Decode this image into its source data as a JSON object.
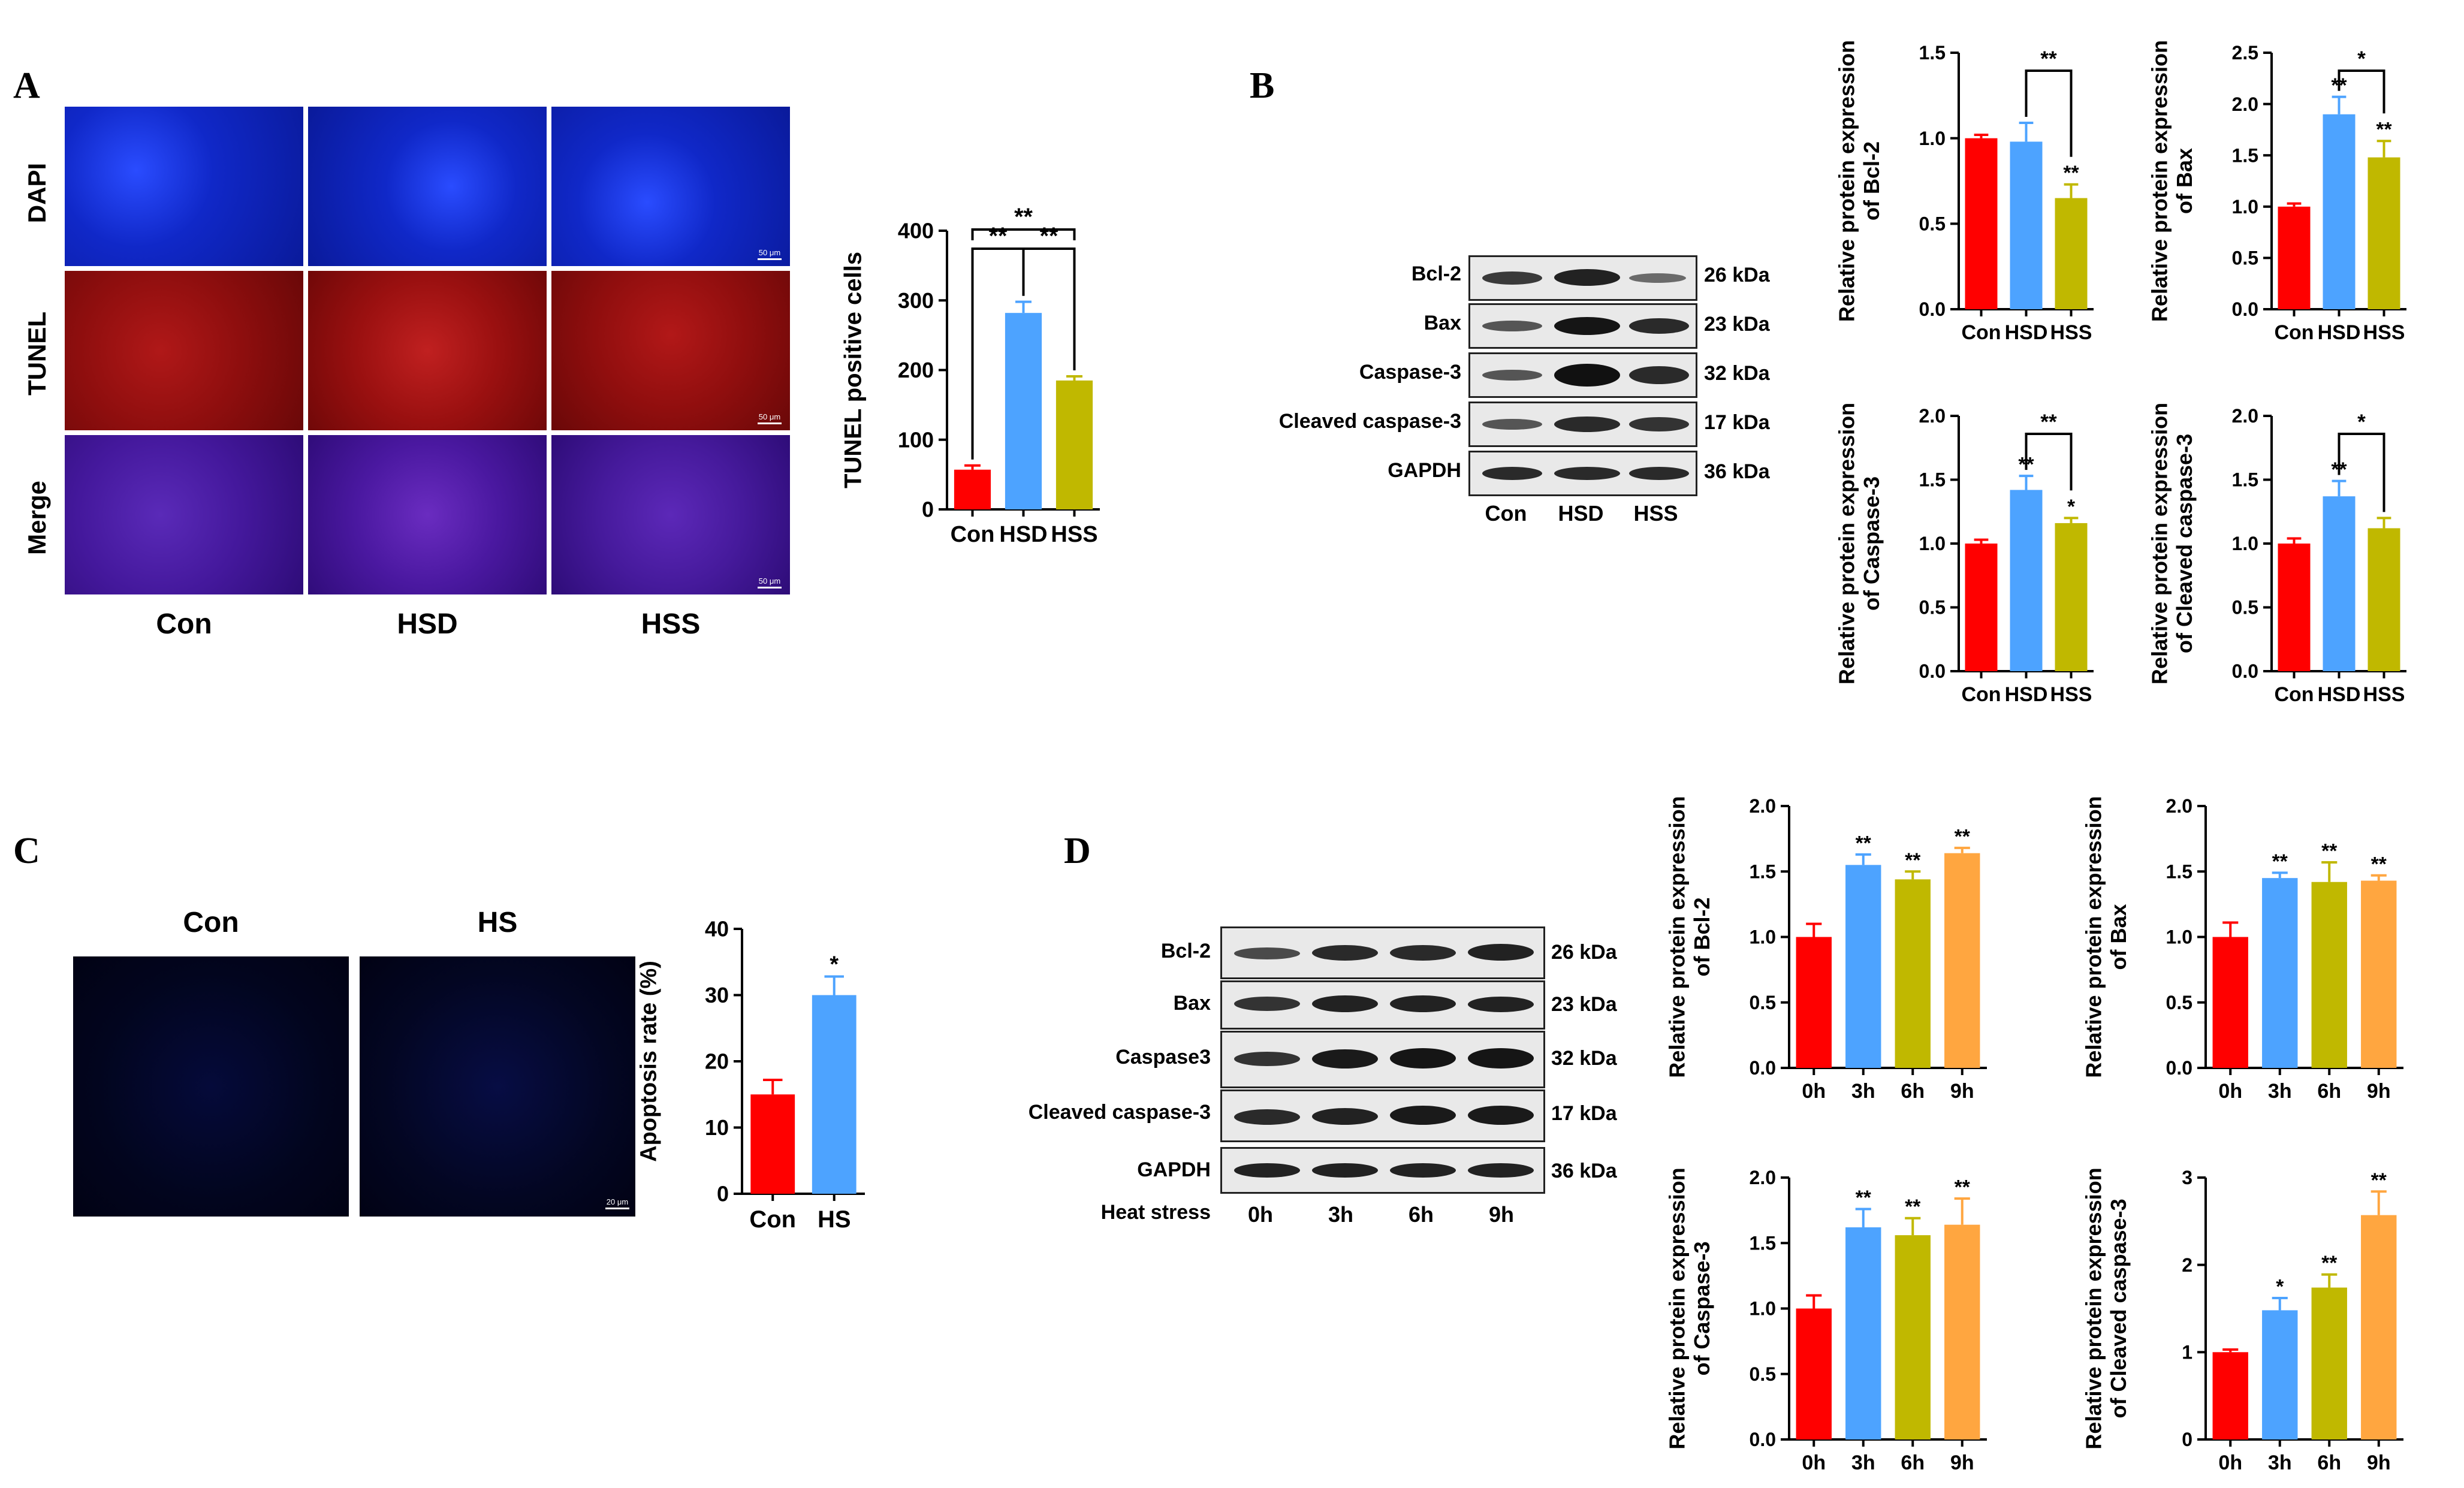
{
  "colors": {
    "red": "#ff0000",
    "blue": "#4da3ff",
    "olive": "#c0b800",
    "orange": "#ffa640",
    "dapi": "#1122cc",
    "tunel": "#a31010",
    "merge": "#4c1ea0"
  },
  "panel_A": {
    "letter": "A",
    "row_labels": [
      "DAPI",
      "TUNEL",
      "Merge"
    ],
    "col_labels": [
      "Con",
      "HSD",
      "HSS"
    ],
    "scale_text": "50 μm"
  },
  "panel_B": {
    "letter": "B",
    "blot_rows": [
      {
        "protein": "Bcl-2",
        "kda": "26 kDa"
      },
      {
        "protein": "Bax",
        "kda": "23 kDa"
      },
      {
        "protein": "Caspase-3",
        "kda": "32 kDa"
      },
      {
        "protein": "Cleaved caspase-3",
        "kda": "17 kDa"
      },
      {
        "protein": "GAPDH",
        "kda": "36 kDa"
      }
    ],
    "lanes": [
      "Con",
      "HSD",
      "HSS"
    ]
  },
  "panel_C": {
    "letter": "C",
    "col_labels": [
      "Con",
      "HS"
    ],
    "scale_text": "20 μm"
  },
  "panel_D": {
    "letter": "D",
    "blot_rows": [
      {
        "protein": "Bcl-2",
        "kda": "26 kDa"
      },
      {
        "protein": "Bax",
        "kda": "23 kDa"
      },
      {
        "protein": "Caspase3",
        "kda": "32 kDa"
      },
      {
        "protein": "Cleaved  caspase-3",
        "kda": "17 kDa"
      },
      {
        "protein": "GAPDH",
        "kda": "36 kDa"
      }
    ],
    "heat_label": "Heat stress",
    "lanes": [
      "0h",
      "3h",
      "6h",
      "9h"
    ]
  },
  "chart_data": [
    {
      "id": "A_tunel",
      "type": "bar",
      "categories": [
        "Con",
        "HSD",
        "HSS"
      ],
      "values": [
        57,
        282,
        185
      ],
      "errors": [
        6,
        16,
        6
      ],
      "ylabel": "TUNEL positive cells",
      "ylim": [
        0,
        400
      ],
      "yticks": [
        0,
        100,
        200,
        300,
        400
      ],
      "tick_labels": [
        "0",
        "100",
        "200",
        "300",
        "400"
      ],
      "colors": [
        "red",
        "blue",
        "olive"
      ],
      "bar_stars": [
        "",
        "",
        ""
      ],
      "brackets": [
        {
          "from": 0,
          "to": 2,
          "text": "**",
          "level": 2
        },
        {
          "from": 0,
          "to": 1,
          "text": "**",
          "level": 1
        },
        {
          "from": 1,
          "to": 2,
          "text": "**",
          "level": 1
        }
      ]
    },
    {
      "id": "B_bcl2",
      "type": "bar",
      "categories": [
        "Con",
        "HSD",
        "HSS"
      ],
      "values": [
        1.0,
        0.98,
        0.65
      ],
      "errors": [
        0.02,
        0.11,
        0.08
      ],
      "ylabel": "Relative protein expression of Bcl-2",
      "ylim": [
        0,
        1.5
      ],
      "yticks": [
        0,
        0.5,
        1.0,
        1.5
      ],
      "tick_labels": [
        "0.0",
        "0.5",
        "1.0",
        "1.5"
      ],
      "colors": [
        "red",
        "blue",
        "olive"
      ],
      "bar_stars": [
        "",
        "",
        "**"
      ],
      "brackets": [
        {
          "from": 1,
          "to": 2,
          "text": "**",
          "level": 1
        }
      ]
    },
    {
      "id": "B_bax",
      "type": "bar",
      "categories": [
        "Con",
        "HSD",
        "HSS"
      ],
      "values": [
        1.0,
        1.9,
        1.48
      ],
      "errors": [
        0.03,
        0.17,
        0.16
      ],
      "ylabel": "Relative protein expression of Bax",
      "ylim": [
        0,
        2.5
      ],
      "yticks": [
        0,
        0.5,
        1.0,
        1.5,
        2.0,
        2.5
      ],
      "tick_labels": [
        "0.0",
        "0.5",
        "1.0",
        "1.5",
        "2.0",
        "2.5"
      ],
      "colors": [
        "red",
        "blue",
        "olive"
      ],
      "bar_stars": [
        "",
        "**",
        "**"
      ],
      "brackets": [
        {
          "from": 1,
          "to": 2,
          "text": "*",
          "level": 1
        }
      ]
    },
    {
      "id": "B_casp3",
      "type": "bar",
      "categories": [
        "Con",
        "HSD",
        "HSS"
      ],
      "values": [
        1.0,
        1.42,
        1.16
      ],
      "errors": [
        0.03,
        0.11,
        0.04
      ],
      "ylabel": "Relative protein expression of Caspase-3",
      "ylim": [
        0,
        2.0
      ],
      "yticks": [
        0,
        0.5,
        1.0,
        1.5,
        2.0
      ],
      "tick_labels": [
        "0.0",
        "0.5",
        "1.0",
        "1.5",
        "2.0"
      ],
      "colors": [
        "red",
        "blue",
        "olive"
      ],
      "bar_stars": [
        "",
        "**",
        "*"
      ],
      "brackets": [
        {
          "from": 1,
          "to": 2,
          "text": "**",
          "level": 1
        }
      ]
    },
    {
      "id": "B_cleaved",
      "type": "bar",
      "categories": [
        "Con",
        "HSD",
        "HSS"
      ],
      "values": [
        1.0,
        1.37,
        1.12
      ],
      "errors": [
        0.04,
        0.12,
        0.08
      ],
      "ylabel": "Relative protein expression of Cleaved caspase-3",
      "ylim": [
        0,
        2.0
      ],
      "yticks": [
        0,
        0.5,
        1.0,
        1.5,
        2.0
      ],
      "tick_labels": [
        "0.0",
        "0.5",
        "1.0",
        "1.5",
        "2.0"
      ],
      "colors": [
        "red",
        "blue",
        "olive"
      ],
      "bar_stars": [
        "",
        "**",
        ""
      ],
      "brackets": [
        {
          "from": 1,
          "to": 2,
          "text": "*",
          "level": 1
        }
      ]
    },
    {
      "id": "C_apop",
      "type": "bar",
      "categories": [
        "Con",
        "HS"
      ],
      "values": [
        15,
        30
      ],
      "errors": [
        2.2,
        2.8
      ],
      "ylabel": "Apoptosis rate (%)",
      "ylim": [
        0,
        40
      ],
      "yticks": [
        0,
        10,
        20,
        30,
        40
      ],
      "tick_labels": [
        "0",
        "10",
        "20",
        "30",
        "40"
      ],
      "colors": [
        "red",
        "blue"
      ],
      "bar_stars": [
        "",
        "*"
      ],
      "brackets": []
    },
    {
      "id": "D_bcl2",
      "type": "bar",
      "categories": [
        "0h",
        "3h",
        "6h",
        "9h"
      ],
      "values": [
        1.0,
        1.55,
        1.44,
        1.64
      ],
      "errors": [
        0.1,
        0.08,
        0.06,
        0.04
      ],
      "ylabel": "Relative protein expression of Bcl-2",
      "ylim": [
        0,
        2.0
      ],
      "yticks": [
        0,
        0.5,
        1.0,
        1.5,
        2.0
      ],
      "tick_labels": [
        "0.0",
        "0.5",
        "1.0",
        "1.5",
        "2.0"
      ],
      "colors": [
        "red",
        "blue",
        "olive",
        "orange"
      ],
      "bar_stars": [
        "",
        "**",
        "**",
        "**"
      ],
      "brackets": []
    },
    {
      "id": "D_bax",
      "type": "bar",
      "categories": [
        "0h",
        "3h",
        "6h",
        "9h"
      ],
      "values": [
        1.0,
        1.45,
        1.42,
        1.43
      ],
      "errors": [
        0.11,
        0.04,
        0.15,
        0.04
      ],
      "ylabel": "Relative protein expression of Bax",
      "ylim": [
        0,
        2.0
      ],
      "yticks": [
        0,
        0.5,
        1.0,
        1.5,
        2.0
      ],
      "tick_labels": [
        "0.0",
        "0.5",
        "1.0",
        "1.5",
        "2.0"
      ],
      "colors": [
        "red",
        "blue",
        "olive",
        "orange"
      ],
      "bar_stars": [
        "",
        "**",
        "**",
        "**"
      ],
      "brackets": []
    },
    {
      "id": "D_casp3",
      "type": "bar",
      "categories": [
        "0h",
        "3h",
        "6h",
        "9h"
      ],
      "values": [
        1.0,
        1.62,
        1.56,
        1.64
      ],
      "errors": [
        0.1,
        0.14,
        0.13,
        0.2
      ],
      "ylabel": "Relative protein expression of Caspase-3",
      "ylim": [
        0,
        2.0
      ],
      "yticks": [
        0,
        0.5,
        1.0,
        1.5,
        2.0
      ],
      "tick_labels": [
        "0.0",
        "0.5",
        "1.0",
        "1.5",
        "2.0"
      ],
      "colors": [
        "red",
        "blue",
        "olive",
        "orange"
      ],
      "bar_stars": [
        "",
        "**",
        "**",
        "**"
      ],
      "brackets": []
    },
    {
      "id": "D_cleaved",
      "type": "bar",
      "categories": [
        "0h",
        "3h",
        "6h",
        "9h"
      ],
      "values": [
        1.0,
        1.48,
        1.74,
        2.57
      ],
      "errors": [
        0.03,
        0.14,
        0.15,
        0.27
      ],
      "ylabel": "Relative protein expression of Cleaved caspase-3",
      "ylim": [
        0,
        3
      ],
      "yticks": [
        0,
        1,
        2,
        3
      ],
      "tick_labels": [
        "0",
        "1",
        "2",
        "3"
      ],
      "colors": [
        "red",
        "blue",
        "olive",
        "orange"
      ],
      "bar_stars": [
        "",
        "*",
        "**",
        "**"
      ],
      "brackets": []
    }
  ]
}
